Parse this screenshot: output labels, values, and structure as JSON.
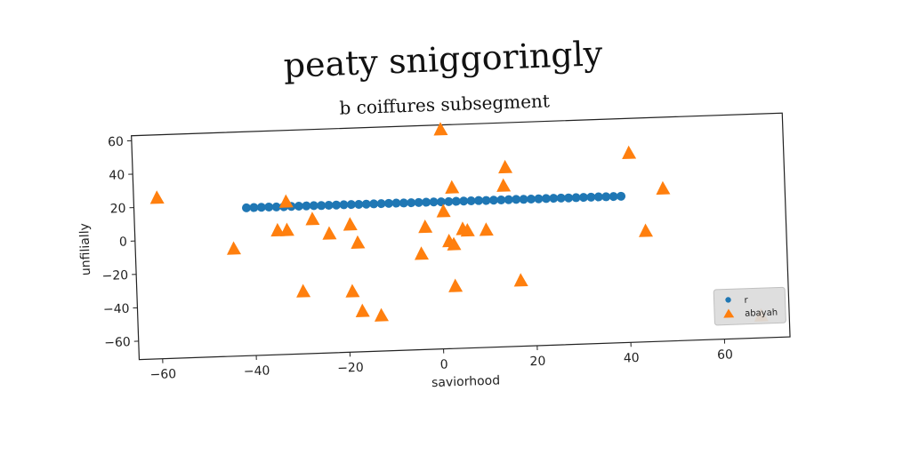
{
  "chart_data": {
    "type": "scatter",
    "suptitle": "peaty sniggoringly",
    "title": "b coiffures subsegment",
    "xlabel": "saviorhood",
    "ylabel": "unfilially",
    "xlim": [
      -65,
      74
    ],
    "ylim": [
      -71,
      63
    ],
    "xticks": [
      -60,
      -40,
      -20,
      0,
      20,
      40,
      60
    ],
    "yticks": [
      -60,
      -40,
      -20,
      0,
      20,
      40,
      60
    ],
    "xtick_labels": [
      "−60",
      "−40",
      "−20",
      "0",
      "20",
      "40",
      "60"
    ],
    "ytick_labels": [
      "−60",
      "−40",
      "−20",
      "0",
      "20",
      "40",
      "60"
    ],
    "grid": false,
    "legend_position": "lower-right",
    "series": [
      {
        "name": "r",
        "marker": "circle",
        "color": "#1f77b4",
        "x": [
          -41.0,
          -39.4,
          -37.8,
          -36.2,
          -34.6,
          -33.0,
          -31.4,
          -29.8,
          -28.2,
          -26.6,
          -25.0,
          -23.4,
          -21.8,
          -20.2,
          -18.6,
          -17.0,
          -15.4,
          -13.8,
          -12.2,
          -10.6,
          -9.0,
          -7.4,
          -5.8,
          -4.2,
          -2.6,
          -1.0,
          0.6,
          2.2,
          3.8,
          5.4,
          7.0,
          8.6,
          10.2,
          11.8,
          13.4,
          15.0,
          16.6,
          18.2,
          19.8,
          21.4,
          23.0,
          24.6,
          26.2,
          27.8,
          29.4,
          31.0,
          32.6,
          34.2,
          35.8,
          37.4,
          39.0
        ],
        "y": [
          17.5,
          17.5,
          17.5,
          17.5,
          17.4,
          17.4,
          17.4,
          17.4,
          17.4,
          17.4,
          17.3,
          17.3,
          17.3,
          17.3,
          17.3,
          17.2,
          17.2,
          17.2,
          17.2,
          17.2,
          17.2,
          17.1,
          17.1,
          17.1,
          17.1,
          17.1,
          17.0,
          17.0,
          17.0,
          17.0,
          17.0,
          17.0,
          16.9,
          16.9,
          16.9,
          16.9,
          16.9,
          16.8,
          16.8,
          16.8,
          16.8,
          16.8,
          16.8,
          16.7,
          16.7,
          16.7,
          16.7,
          16.7,
          16.6,
          16.6,
          16.6
        ]
      },
      {
        "name": "abayah",
        "marker": "triangle",
        "color": "#ff7f0e",
        "x": [
          -60,
          -44,
          -34.5,
          -32.5,
          -32.5,
          -27,
          -29.5,
          -23.5,
          -19,
          -17.5,
          -19,
          -17,
          -13,
          -3,
          -4,
          1,
          1,
          2,
          3,
          3,
          3,
          5,
          6,
          10,
          14,
          14.5,
          17,
          41,
          44,
          48,
          68
        ],
        "y": [
          25,
          -7,
          3,
          3,
          20,
          9,
          -34,
          0,
          5,
          -6,
          -35,
          -47,
          -50,
          2,
          -14,
          60,
          11,
          -7,
          25,
          -9,
          -34,
          0,
          -1,
          -1,
          25,
          36,
          -32,
          42,
          -5,
          20,
          -58
        ]
      }
    ]
  }
}
